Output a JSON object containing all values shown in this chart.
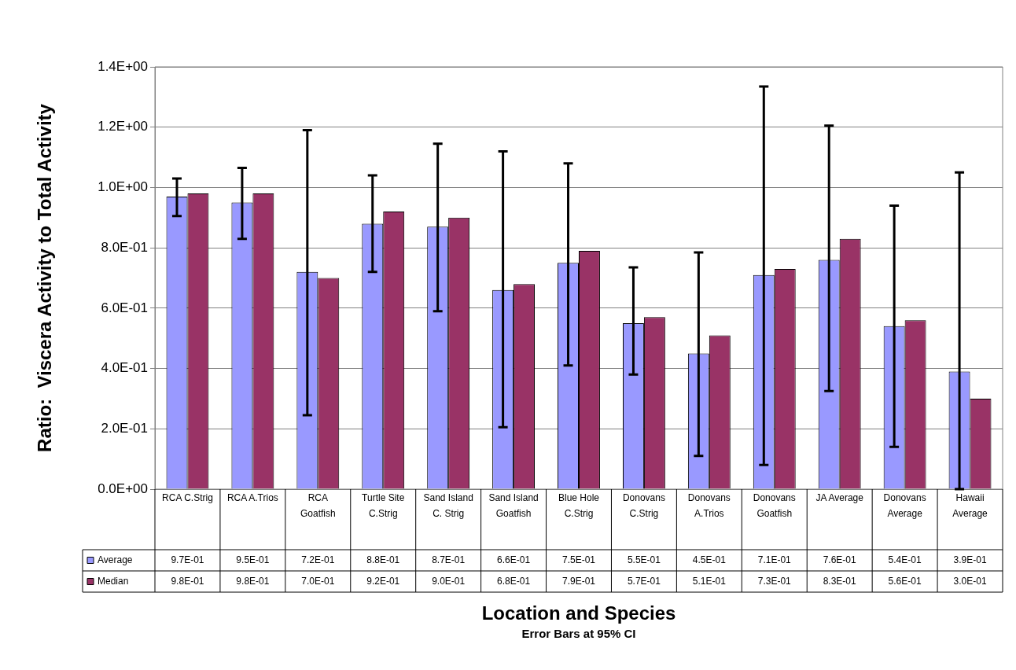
{
  "chart_data": {
    "type": "bar",
    "xlabel": "Location and Species",
    "ylabel": "Ratio:  Viscera Activity to Total Activity",
    "annotations": [
      "Error Bars at 95% CI"
    ],
    "categories": [
      "RCA C.Strig",
      "RCA A.Trios",
      "RCA Goatfish",
      "Turtle Site C.Strig",
      "Sand Island C. Strig",
      "Sand Island Goatfish",
      "Blue Hole C.Strig",
      "Donovans C.Strig",
      "Donovans A.Trios",
      "Donovans Goatfish",
      "JA Average",
      "Donovans Average",
      "Hawaii Average"
    ],
    "series": [
      {
        "name": "Average",
        "color": "#9999ff",
        "values": [
          0.97,
          0.95,
          0.72,
          0.88,
          0.87,
          0.66,
          0.75,
          0.55,
          0.45,
          0.71,
          0.76,
          0.54,
          0.39
        ],
        "errors": [
          [
            0.905,
            1.03
          ],
          [
            0.83,
            1.065
          ],
          [
            0.245,
            1.19
          ],
          [
            0.72,
            1.04
          ],
          [
            0.59,
            1.145
          ],
          [
            0.205,
            1.12
          ],
          [
            0.41,
            1.08
          ],
          [
            0.38,
            0.735
          ],
          [
            0.11,
            0.785
          ],
          [
            0.08,
            1.335
          ],
          [
            0.325,
            1.205
          ],
          [
            0.14,
            0.94
          ],
          [
            0,
            1.05
          ]
        ],
        "value_labels": [
          "9.7E-01",
          "9.5E-01",
          "7.2E-01",
          "8.8E-01",
          "8.7E-01",
          "6.6E-01",
          "7.5E-01",
          "5.5E-01",
          "4.5E-01",
          "7.1E-01",
          "7.6E-01",
          "5.4E-01",
          "3.9E-01"
        ]
      },
      {
        "name": "Median",
        "color": "#993366",
        "values": [
          0.98,
          0.98,
          0.7,
          0.92,
          0.9,
          0.68,
          0.79,
          0.57,
          0.51,
          0.73,
          0.83,
          0.56,
          0.3
        ],
        "value_labels": [
          "9.8E-01",
          "9.8E-01",
          "7.0E-01",
          "9.2E-01",
          "9.0E-01",
          "6.8E-01",
          "7.9E-01",
          "5.7E-01",
          "5.1E-01",
          "7.3E-01",
          "8.3E-01",
          "5.6E-01",
          "3.0E-01"
        ]
      }
    ],
    "ylim": [
      0,
      1.4
    ],
    "yticks": [
      {
        "value": 0,
        "label": "0.0E+00"
      },
      {
        "value": 0.2,
        "label": "2.0E-01"
      },
      {
        "value": 0.4,
        "label": "4.0E-01"
      },
      {
        "value": 0.6,
        "label": "6.0E-01"
      },
      {
        "value": 0.8,
        "label": "8.0E-01"
      },
      {
        "value": 1,
        "label": "1.0E+00"
      },
      {
        "value": 1.2,
        "label": "1.2E+00"
      },
      {
        "value": 1.4,
        "label": "1.4E+00"
      }
    ],
    "grid": "y",
    "legend": "bottom"
  }
}
